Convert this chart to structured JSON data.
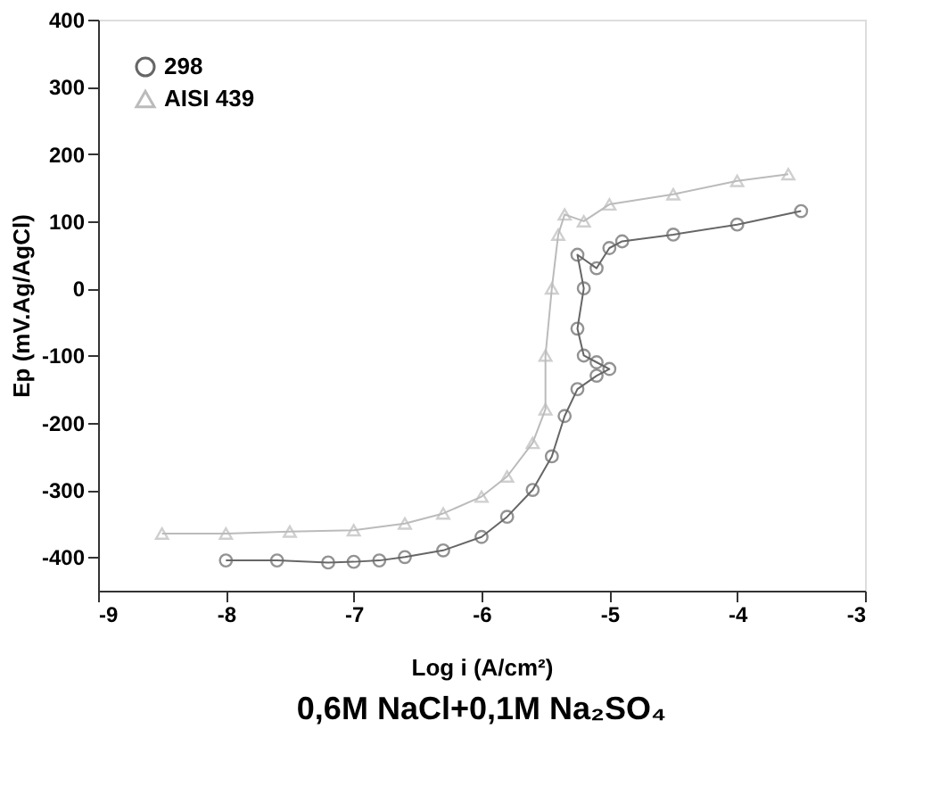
{
  "chart_data": {
    "type": "line",
    "title": "0,6M NaCl+0,1M Na₂SO₄",
    "xlabel": "Log i (A/cm²)",
    "ylabel": "Ep (mV.Ag/AgCl)",
    "xlim": [
      -9,
      -3
    ],
    "xticks": [
      -9,
      -8,
      -7,
      -6,
      -5,
      -4,
      -3
    ],
    "ylim": [
      -450,
      400
    ],
    "yticks": [
      -400,
      -300,
      -200,
      -100,
      0,
      100,
      200,
      300,
      400
    ],
    "grid": false,
    "legend": "top left",
    "marker": "circle",
    "line_style": "solid",
    "series": [
      {
        "name": "298",
        "color": "#666666",
        "marker": "circle",
        "x": [
          -8,
          -7.6,
          -7.2,
          -7,
          -6.8,
          -6.6,
          -6.3,
          -6.0,
          -5.8,
          -5.6,
          -5.45,
          -5.35,
          -5.25,
          -5.1,
          -5.0,
          -5.1,
          -5.2,
          -5.25,
          -5.2,
          -5.25,
          -5.1,
          -5.0,
          -4.9,
          -4.5,
          -4.0,
          -3.5
        ],
        "values": [
          -405,
          -405,
          -408,
          -407,
          -405,
          -400,
          -390,
          -370,
          -340,
          -300,
          -250,
          -190,
          -150,
          -130,
          -120,
          -110,
          -100,
          -60,
          0,
          50,
          30,
          60,
          70,
          80,
          95,
          115
        ]
      },
      {
        "name": "AISI 439",
        "color": "#bbbbbb",
        "marker": "triangle",
        "x": [
          -8.5,
          -8,
          -7.5,
          -7,
          -6.6,
          -6.3,
          -6.0,
          -5.8,
          -5.6,
          -5.5,
          -5.5,
          -5.45,
          -5.4,
          -5.35,
          -5.2,
          -5.0,
          -4.5,
          -4.0,
          -3.6
        ],
        "values": [
          -365,
          -365,
          -362,
          -360,
          -350,
          -335,
          -310,
          -280,
          -230,
          -180,
          -100,
          0,
          80,
          110,
          100,
          125,
          140,
          160,
          170
        ]
      }
    ]
  }
}
